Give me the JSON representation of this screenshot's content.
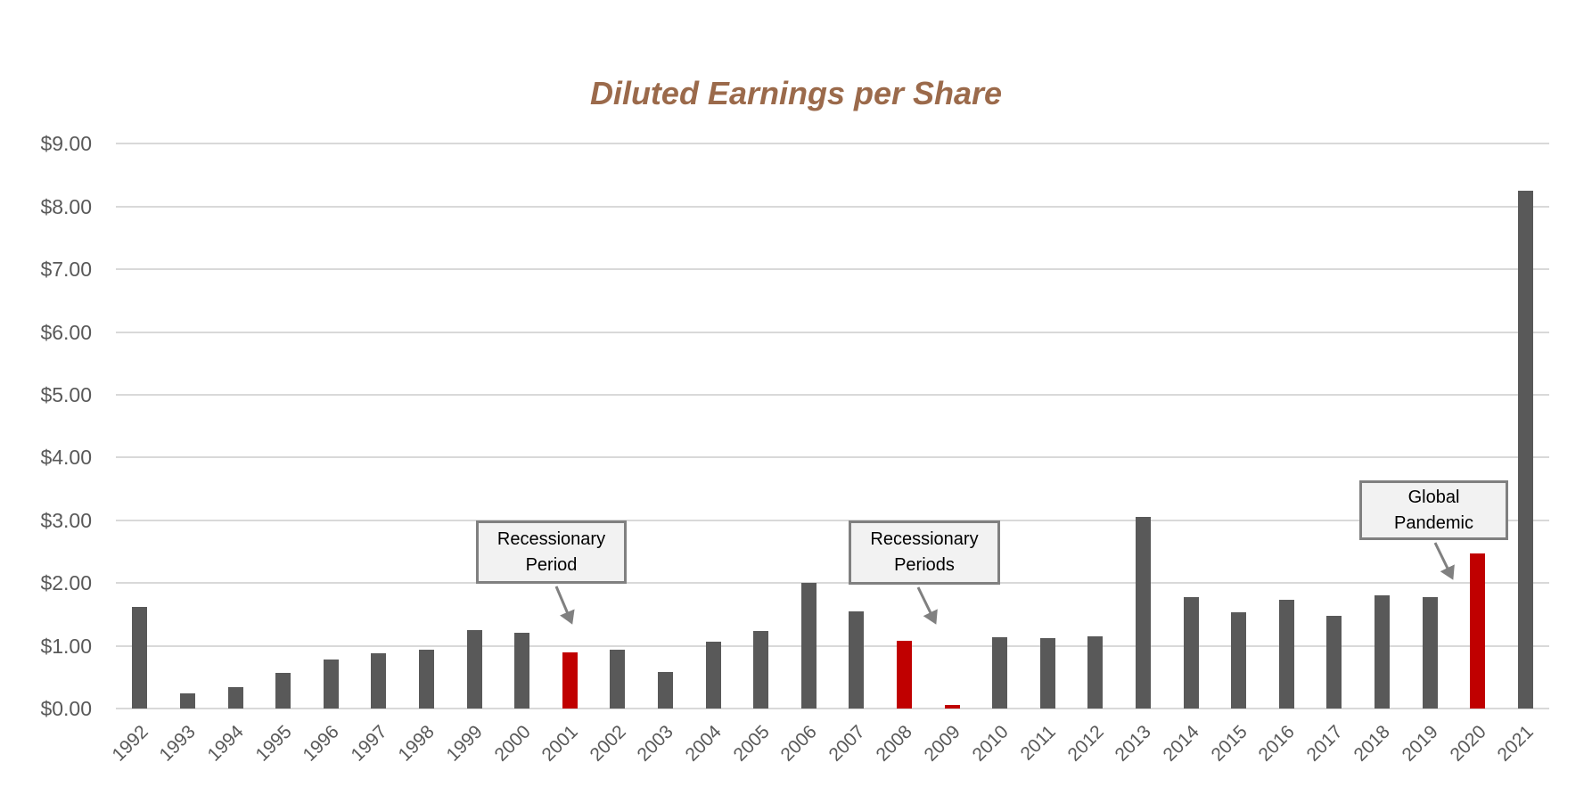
{
  "colors": {
    "title": "#9b6a4b",
    "bar_default": "#595959",
    "bar_highlight": "#c00000",
    "grid": "#d9d9d9",
    "axis_text": "#595959",
    "callout_fill": "#f2f2f2",
    "callout_border": "#808080"
  },
  "chart_data": {
    "type": "bar",
    "title": "Diluted Earnings per Share",
    "xlabel": "",
    "ylabel": "",
    "ylim": [
      0,
      9
    ],
    "yticks": [
      "$0.00",
      "$1.00",
      "$2.00",
      "$3.00",
      "$4.00",
      "$5.00",
      "$6.00",
      "$7.00",
      "$8.00",
      "$9.00"
    ],
    "grid": true,
    "legend": null,
    "categories": [
      "1992",
      "1993",
      "1994",
      "1995",
      "1996",
      "1997",
      "1998",
      "1999",
      "2000",
      "2001",
      "2002",
      "2003",
      "2004",
      "2005",
      "2006",
      "2007",
      "2008",
      "2009",
      "2010",
      "2011",
      "2012",
      "2013",
      "2014",
      "2015",
      "2016",
      "2017",
      "2018",
      "2019",
      "2020",
      "2021"
    ],
    "series": [
      {
        "name": "Diluted EPS",
        "values": [
          1.62,
          0.24,
          0.34,
          0.57,
          0.78,
          0.88,
          0.94,
          1.25,
          1.21,
          0.89,
          0.94,
          0.58,
          1.07,
          1.24,
          2.0,
          1.55,
          1.08,
          0.05,
          1.13,
          1.12,
          1.15,
          3.05,
          1.78,
          1.53,
          1.73,
          1.48,
          1.81,
          1.78,
          2.47,
          8.25
        ]
      }
    ],
    "highlighted_categories": [
      "2001",
      "2008",
      "2009",
      "2020"
    ],
    "annotations": [
      {
        "text": [
          "Recessionary",
          "Period"
        ],
        "points_to": "2001"
      },
      {
        "text": [
          "Recessionary",
          "Periods"
        ],
        "points_to": "2009"
      },
      {
        "text": [
          "Global",
          "Pandemic"
        ],
        "points_to": "2020"
      }
    ]
  }
}
